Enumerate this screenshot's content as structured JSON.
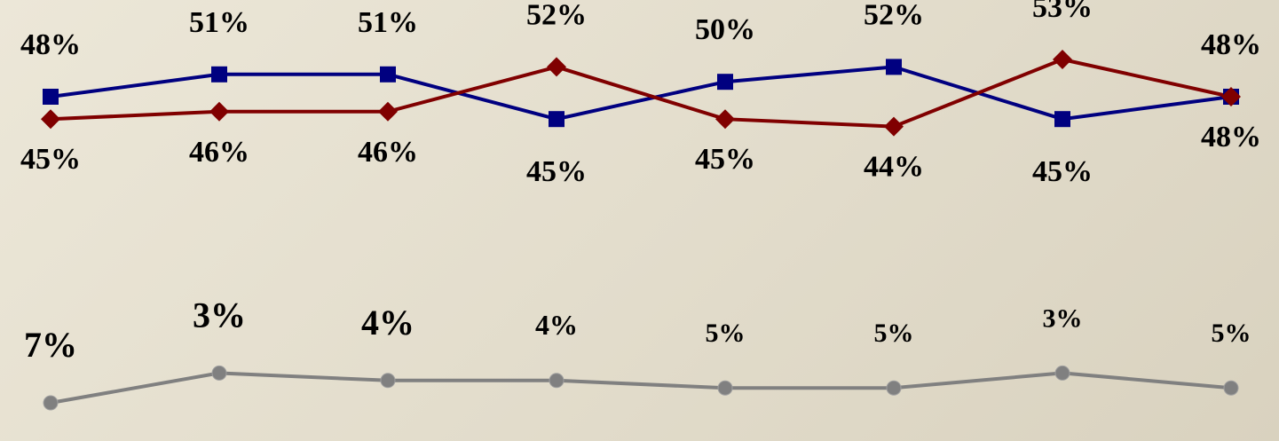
{
  "chart_data": {
    "type": "line",
    "title": "",
    "xlabel": "",
    "ylabel": "",
    "categories": [
      "",
      "",
      "",
      "",
      "",
      "",
      "",
      ""
    ],
    "grid": false,
    "legend": "none",
    "series": [
      {
        "color": "#000080",
        "marker": "square",
        "values": [
          48,
          51,
          51,
          45,
          50,
          52,
          45,
          48
        ],
        "labels": [
          "48%",
          "51%",
          "51%",
          "45%",
          "50%",
          "52%",
          "45%",
          "48%"
        ],
        "label_side": [
          "above",
          "above",
          "above",
          "below",
          "above",
          "above",
          "below",
          "above"
        ]
      },
      {
        "color": "#800000",
        "marker": "diamond",
        "values": [
          45,
          46,
          46,
          52,
          45,
          44,
          53,
          48
        ],
        "labels": [
          "45%",
          "46%",
          "46%",
          "52%",
          "45%",
          "44%",
          "53%",
          "48%"
        ],
        "label_side": [
          "below",
          "below",
          "below",
          "above",
          "below",
          "below",
          "above",
          "below"
        ]
      },
      {
        "color": "#808080",
        "marker": "circle",
        "values": [
          7,
          3,
          4,
          4,
          5,
          5,
          3,
          5
        ],
        "labels": [
          "7%",
          "3%",
          "4%",
          "4%",
          "5%",
          "5%",
          "3%",
          "5%"
        ],
        "label_side": [
          "above",
          "above",
          "above",
          "above",
          "above",
          "above",
          "above",
          "above"
        ]
      }
    ]
  }
}
